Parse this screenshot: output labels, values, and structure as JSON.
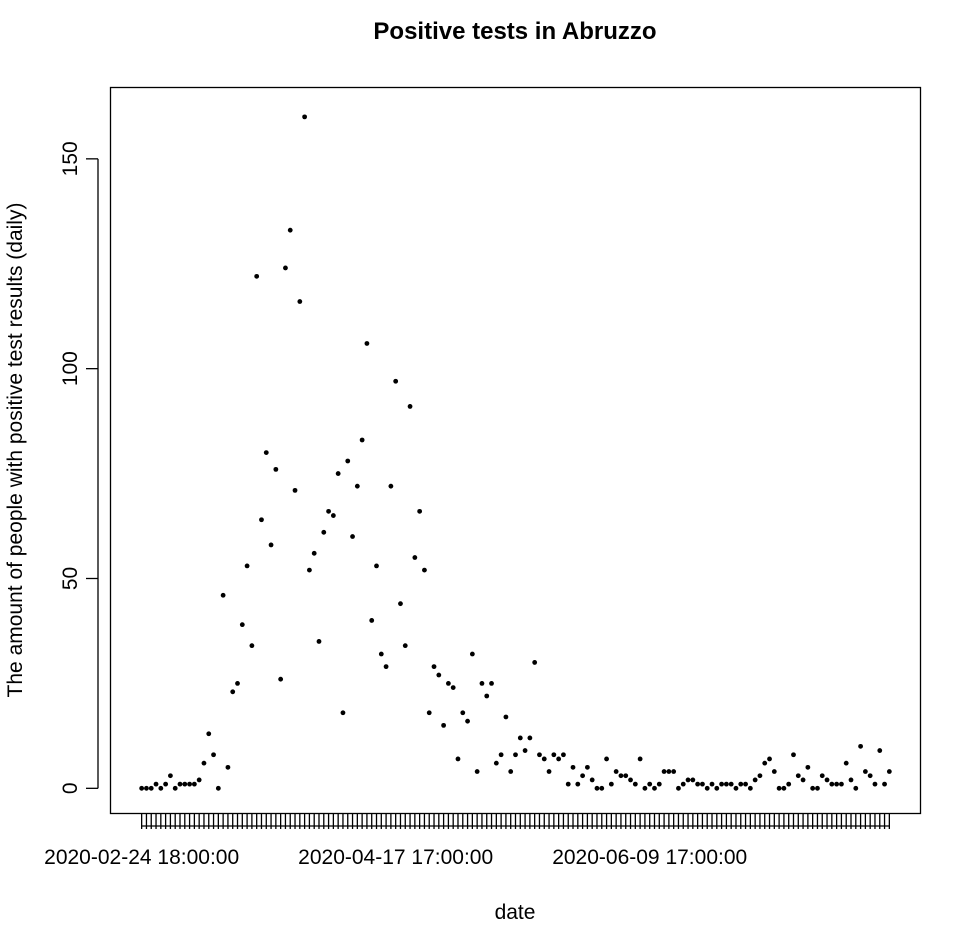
{
  "chart_data": {
    "type": "scatter",
    "title": "Positive tests in Abruzzo",
    "xlabel": "date",
    "ylabel": "The amount of people with positive test results (daily)",
    "x_tick_labels": [
      "2020-02-24 18:00:00",
      "2020-04-17 17:00:00",
      "2020-06-09 17:00:00"
    ],
    "x_tick_label_day_index": [
      0,
      53,
      106
    ],
    "y_ticks": [
      0,
      50,
      100,
      150
    ],
    "ylim": [
      -6,
      167
    ],
    "x_range_days": [
      -6.5,
      162.5
    ],
    "day_count": 157,
    "x_start": "2020-02-24 18:00:00",
    "grid": false,
    "legend": "none",
    "point_color": "#000000",
    "values": [
      0,
      0,
      0,
      1,
      0,
      1,
      3,
      0,
      1,
      1,
      1,
      1,
      2,
      6,
      13,
      8,
      0,
      46,
      5,
      23,
      25,
      39,
      53,
      34,
      122,
      64,
      80,
      58,
      76,
      26,
      124,
      133,
      71,
      116,
      160,
      52,
      56,
      35,
      61,
      66,
      65,
      75,
      18,
      78,
      60,
      72,
      83,
      106,
      40,
      53,
      32,
      29,
      72,
      97,
      44,
      34,
      91,
      55,
      66,
      52,
      18,
      29,
      27,
      15,
      25,
      24,
      7,
      18,
      16,
      32,
      4,
      25,
      22,
      25,
      6,
      8,
      17,
      4,
      8,
      12,
      9,
      12,
      30,
      8,
      7,
      4,
      8,
      7,
      8,
      1,
      5,
      1,
      3,
      5,
      2,
      0,
      0,
      7,
      1,
      4,
      3,
      3,
      2,
      1,
      7,
      0,
      1,
      0,
      1,
      4,
      4,
      4,
      0,
      1,
      2,
      2,
      1,
      1,
      0,
      1,
      0,
      1,
      1,
      1,
      0,
      1,
      1,
      0,
      2,
      3,
      6,
      7,
      4,
      0,
      0,
      1,
      8,
      3,
      2,
      5,
      0,
      0,
      3,
      2,
      1,
      1,
      1,
      6,
      2,
      0,
      10,
      4,
      3,
      1,
      9,
      1,
      4
    ]
  }
}
